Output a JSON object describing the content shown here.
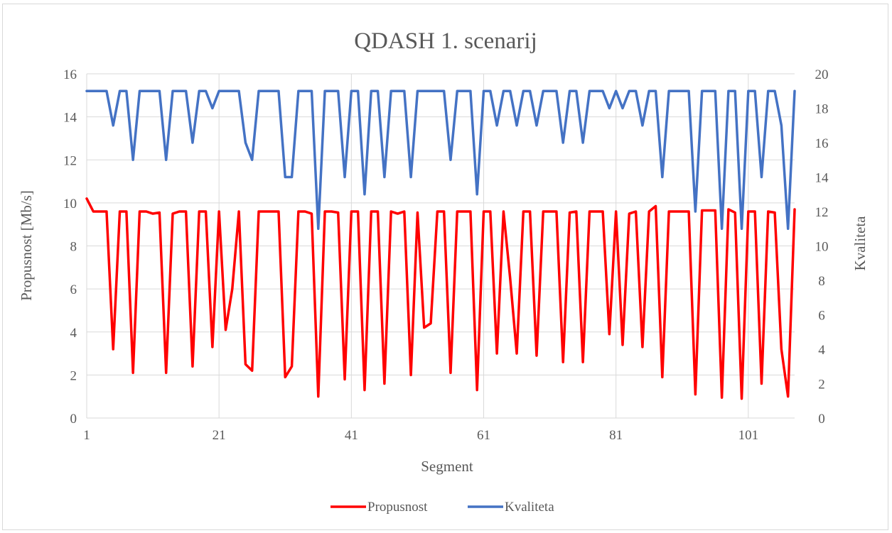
{
  "chart_data": {
    "type": "line",
    "title": "QDASH 1. scenarij",
    "xlabel": "Segment",
    "ylabel_left": "Propusnost [Mb/s]",
    "ylabel_right": "Kvaliteta",
    "x_ticks": [
      "1",
      "21",
      "41",
      "61",
      "81",
      "101"
    ],
    "y_left_ticks": [
      "0",
      "2",
      "4",
      "6",
      "8",
      "10",
      "12",
      "14",
      "16"
    ],
    "y_right_ticks": [
      "0",
      "2",
      "4",
      "6",
      "8",
      "10",
      "12",
      "14",
      "16",
      "18",
      "20"
    ],
    "xlim": [
      1,
      108
    ],
    "ylim_left": [
      0,
      16
    ],
    "ylim_right": [
      0,
      20
    ],
    "grid": "horizontal",
    "legend_position": "bottom",
    "series": [
      {
        "name": "Propusnost",
        "axis": "left",
        "color": "#ff0000",
        "values": [
          10.2,
          9.6,
          9.6,
          9.6,
          3.2,
          9.6,
          9.6,
          2.1,
          9.6,
          9.6,
          9.5,
          9.55,
          2.1,
          9.5,
          9.6,
          9.6,
          2.4,
          9.6,
          9.6,
          3.3,
          9.6,
          4.1,
          6.0,
          9.6,
          2.5,
          2.2,
          9.6,
          9.6,
          9.6,
          9.6,
          1.9,
          2.4,
          9.6,
          9.6,
          9.5,
          1.0,
          9.6,
          9.6,
          9.55,
          1.8,
          9.6,
          9.6,
          1.3,
          9.6,
          9.6,
          1.6,
          9.6,
          9.5,
          9.6,
          2.0,
          9.55,
          4.2,
          4.4,
          9.6,
          9.6,
          2.1,
          9.6,
          9.6,
          9.6,
          1.3,
          9.6,
          9.6,
          3.0,
          9.6,
          6.5,
          3.0,
          9.6,
          9.6,
          2.9,
          9.6,
          9.6,
          9.6,
          2.6,
          9.55,
          9.6,
          2.6,
          9.6,
          9.6,
          9.6,
          3.9,
          9.6,
          3.4,
          9.5,
          9.6,
          3.3,
          9.6,
          9.85,
          1.9,
          9.6,
          9.6,
          9.6,
          9.6,
          1.1,
          9.65,
          9.65,
          9.65,
          0.95,
          9.7,
          9.55,
          0.9,
          9.6,
          9.6,
          1.6,
          9.6,
          9.55,
          3.2,
          1.0,
          9.7
        ]
      },
      {
        "name": "Kvaliteta",
        "axis": "right",
        "color": "#4472c4",
        "values": [
          19,
          19,
          19,
          19,
          17,
          19,
          19,
          15,
          19,
          19,
          19,
          19,
          15,
          19,
          19,
          19,
          16,
          19,
          19,
          18,
          19,
          19,
          19,
          19,
          16,
          15,
          19,
          19,
          19,
          19,
          14,
          14,
          19,
          19,
          19,
          11,
          19,
          19,
          19,
          14,
          19,
          19,
          13,
          19,
          19,
          14,
          19,
          19,
          19,
          14,
          19,
          19,
          19,
          19,
          19,
          15,
          19,
          19,
          19,
          13,
          19,
          19,
          17,
          19,
          19,
          17,
          19,
          19,
          17,
          19,
          19,
          19,
          16,
          19,
          19,
          16,
          19,
          19,
          19,
          18,
          19,
          18,
          19,
          19,
          17,
          19,
          19,
          14,
          19,
          19,
          19,
          19,
          12,
          19,
          19,
          19,
          11,
          19,
          19,
          11,
          19,
          19,
          14,
          19,
          19,
          17,
          11,
          19
        ]
      }
    ]
  }
}
